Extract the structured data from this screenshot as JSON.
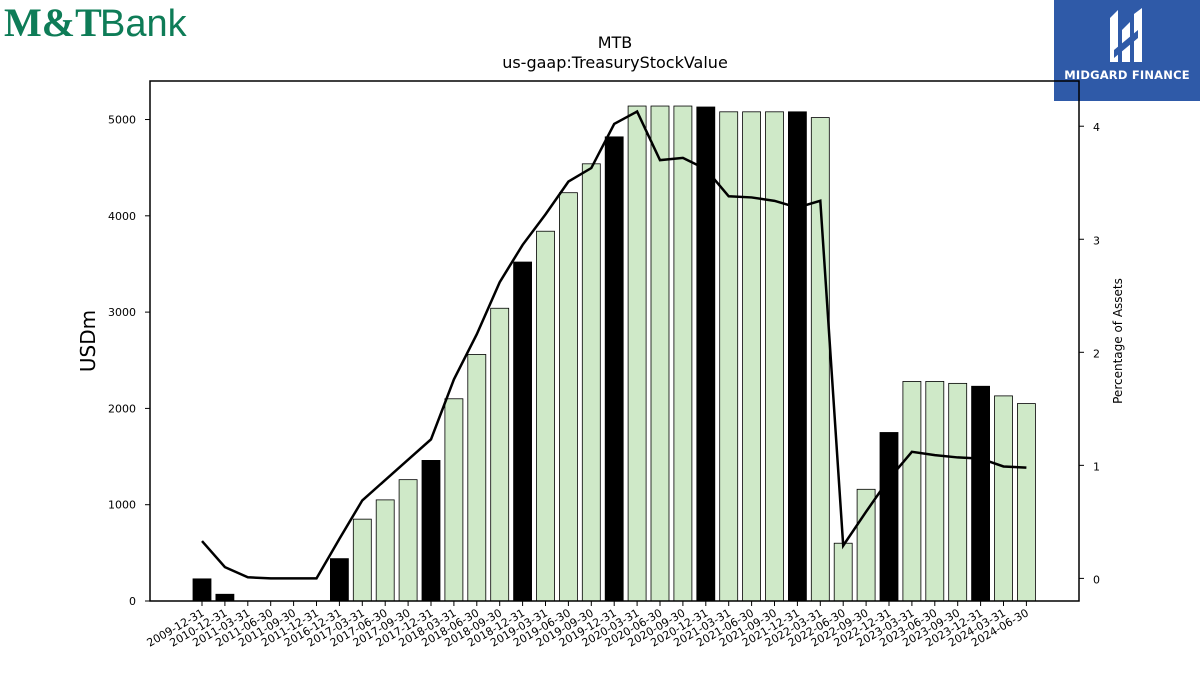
{
  "brand": {
    "logo_text_left": "M&T",
    "logo_text_right": "Bank",
    "logo_color": "#0e7c57",
    "badge_text": "MIDGARD FINANCE",
    "badge_color": "#2f5aa8"
  },
  "chart_data": {
    "type": "bar",
    "title": "MTB",
    "subtitle": "us-gaap:TreasuryStockValue",
    "ylabel": "USDm",
    "y2label": "Percentage of Assets",
    "ylim": [
      0,
      5400
    ],
    "y2lim": [
      -0.2,
      4.4
    ],
    "yticks": [
      0,
      1000,
      2000,
      3000,
      4000,
      5000
    ],
    "y2ticks": [
      0,
      1,
      2,
      3,
      4
    ],
    "categories": [
      "2009-12-31",
      "2010-12-31",
      "2011-03-31",
      "2011-06-30",
      "2011-09-30",
      "2011-12-31",
      "2016-12-31",
      "2017-03-31",
      "2017-06-30",
      "2017-09-30",
      "2017-12-31",
      "2018-03-31",
      "2018-06-30",
      "2018-09-30",
      "2018-12-31",
      "2019-03-31",
      "2019-06-30",
      "2019-09-30",
      "2019-12-31",
      "2020-03-31",
      "2020-06-30",
      "2020-09-30",
      "2020-12-31",
      "2021-03-31",
      "2021-06-30",
      "2021-09-30",
      "2021-12-31",
      "2022-03-31",
      "2022-06-30",
      "2022-09-30",
      "2022-12-31",
      "2023-03-31",
      "2023-06-30",
      "2023-09-30",
      "2023-12-31",
      "2024-03-31",
      "2024-06-30"
    ],
    "series": [
      {
        "kind": "bar",
        "values": [
          230,
          70,
          0,
          0,
          0,
          0,
          440,
          850,
          1050,
          1260,
          1460,
          2100,
          2560,
          3040,
          3520,
          3840,
          4240,
          4540,
          4820,
          5140,
          5140,
          5140,
          5130,
          5080,
          5080,
          5080,
          5080,
          5020,
          600,
          1160,
          1750,
          2280,
          2280,
          2260,
          2230,
          2130,
          2050
        ],
        "highlight": [
          true,
          true,
          false,
          false,
          false,
          false,
          true,
          false,
          false,
          false,
          true,
          false,
          false,
          false,
          true,
          false,
          false,
          false,
          true,
          false,
          false,
          false,
          true,
          false,
          false,
          false,
          true,
          false,
          false,
          false,
          true,
          false,
          false,
          false,
          true,
          false,
          false
        ],
        "color": "#cfe9c8",
        "highlight_color": "#000000"
      },
      {
        "kind": "line",
        "axis": "right",
        "values": [
          0.33,
          0.1,
          0.01,
          0.0,
          0.0,
          0.0,
          0.35,
          0.69,
          0.87,
          1.05,
          1.23,
          1.76,
          2.16,
          2.62,
          2.95,
          3.22,
          3.51,
          3.63,
          4.02,
          4.13,
          3.7,
          3.72,
          3.62,
          3.38,
          3.37,
          3.34,
          3.28,
          3.34,
          0.29,
          0.59,
          0.88,
          1.12,
          1.09,
          1.07,
          1.06,
          0.99,
          0.98
        ],
        "color": "#000000"
      }
    ]
  }
}
